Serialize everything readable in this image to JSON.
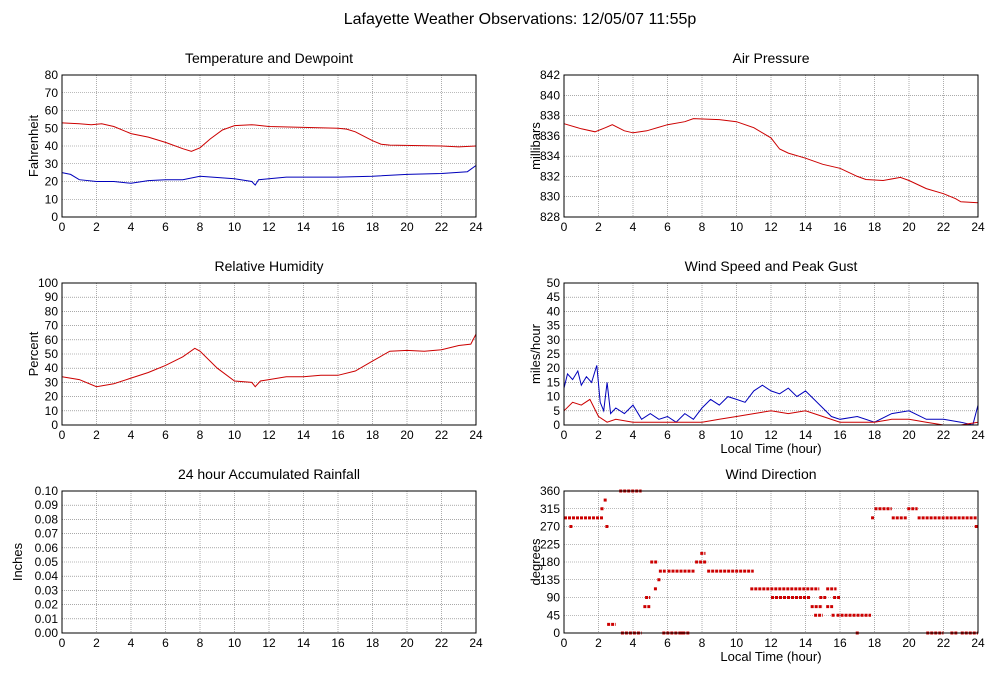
{
  "title": "Lafayette Weather Observations: 12/05/07 11:55p",
  "colors": {
    "red": "#cc0000",
    "blue": "#0000bb",
    "grid": "#777777"
  },
  "chart_data": [
    {
      "id": "temp",
      "type": "line",
      "title": "Temperature and Dewpoint",
      "xlabel": "",
      "ylabel": "Fahrenheit",
      "xlim": [
        0,
        24
      ],
      "ylim": [
        0,
        80
      ],
      "xticks": [
        0,
        2,
        4,
        6,
        8,
        10,
        12,
        14,
        16,
        18,
        20,
        22,
        24
      ],
      "yticks": [
        0,
        10,
        20,
        30,
        40,
        50,
        60,
        70,
        80
      ],
      "grid": true,
      "series": [
        {
          "color": "red",
          "points": [
            [
              0,
              53
            ],
            [
              1,
              52.5
            ],
            [
              1.7,
              52
            ],
            [
              2.3,
              52.5
            ],
            [
              3,
              51
            ],
            [
              4,
              47
            ],
            [
              5,
              45
            ],
            [
              6,
              42
            ],
            [
              7,
              38.5
            ],
            [
              7.5,
              37
            ],
            [
              8,
              39
            ],
            [
              8.6,
              44
            ],
            [
              9.3,
              49
            ],
            [
              10,
              51.5
            ],
            [
              11,
              52
            ],
            [
              12,
              51
            ],
            [
              14,
              50.5
            ],
            [
              16,
              50
            ],
            [
              16.5,
              49.5
            ],
            [
              17,
              48
            ],
            [
              18,
              43
            ],
            [
              18.5,
              41
            ],
            [
              19,
              40.5
            ],
            [
              22,
              40
            ],
            [
              23,
              39.5
            ],
            [
              24,
              40
            ]
          ]
        },
        {
          "color": "blue",
          "points": [
            [
              0,
              25
            ],
            [
              0.5,
              24
            ],
            [
              1,
              21
            ],
            [
              2,
              20
            ],
            [
              3,
              20
            ],
            [
              4,
              19
            ],
            [
              5,
              20.5
            ],
            [
              6,
              21
            ],
            [
              7,
              21
            ],
            [
              8,
              23
            ],
            [
              10,
              21.5
            ],
            [
              11,
              20
            ],
            [
              11.2,
              18
            ],
            [
              11.4,
              21
            ],
            [
              12,
              21.5
            ],
            [
              13,
              22.5
            ],
            [
              14,
              22.5
            ],
            [
              16,
              22.5
            ],
            [
              18,
              23
            ],
            [
              20,
              24
            ],
            [
              22,
              24.5
            ],
            [
              23.5,
              25.5
            ],
            [
              24,
              29
            ]
          ]
        }
      ]
    },
    {
      "id": "pressure",
      "type": "line",
      "title": "Air Pressure",
      "xlabel": "",
      "ylabel": "millibars",
      "xlim": [
        0,
        24
      ],
      "ylim": [
        828,
        842
      ],
      "xticks": [
        0,
        2,
        4,
        6,
        8,
        10,
        12,
        14,
        16,
        18,
        20,
        22,
        24
      ],
      "yticks": [
        828,
        830,
        832,
        834,
        836,
        838,
        840,
        842
      ],
      "grid": true,
      "series": [
        {
          "color": "red",
          "points": [
            [
              0,
              837.2
            ],
            [
              1,
              836.7
            ],
            [
              1.8,
              836.4
            ],
            [
              2.4,
              836.8
            ],
            [
              2.8,
              837.1
            ],
            [
              3.5,
              836.5
            ],
            [
              4,
              836.3
            ],
            [
              4.8,
              836.5
            ],
            [
              6,
              837.1
            ],
            [
              7,
              837.4
            ],
            [
              7.5,
              837.7
            ],
            [
              9,
              837.6
            ],
            [
              10,
              837.4
            ],
            [
              11,
              836.8
            ],
            [
              12,
              835.8
            ],
            [
              12.5,
              834.7
            ],
            [
              13,
              834.3
            ],
            [
              14,
              833.8
            ],
            [
              15,
              833.2
            ],
            [
              16,
              832.8
            ],
            [
              17,
              832
            ],
            [
              17.5,
              831.7
            ],
            [
              18.5,
              831.6
            ],
            [
              19.5,
              831.9
            ],
            [
              20,
              831.6
            ],
            [
              21,
              830.8
            ],
            [
              22,
              830.3
            ],
            [
              22.7,
              829.8
            ],
            [
              23,
              829.5
            ],
            [
              24,
              829.4
            ]
          ]
        }
      ]
    },
    {
      "id": "humidity",
      "type": "line",
      "title": "Relative Humidity",
      "xlabel": "",
      "ylabel": "Percent",
      "xlim": [
        0,
        24
      ],
      "ylim": [
        0,
        100
      ],
      "xticks": [
        0,
        2,
        4,
        6,
        8,
        10,
        12,
        14,
        16,
        18,
        20,
        22,
        24
      ],
      "yticks": [
        0,
        10,
        20,
        30,
        40,
        50,
        60,
        70,
        80,
        90,
        100
      ],
      "grid": true,
      "series": [
        {
          "color": "red",
          "points": [
            [
              0,
              34
            ],
            [
              1,
              32
            ],
            [
              2,
              27
            ],
            [
              3,
              29
            ],
            [
              4,
              33
            ],
            [
              5,
              37
            ],
            [
              6,
              42
            ],
            [
              7,
              48
            ],
            [
              7.7,
              54
            ],
            [
              8,
              52
            ],
            [
              9,
              40
            ],
            [
              10,
              31
            ],
            [
              11,
              30
            ],
            [
              11.2,
              27
            ],
            [
              11.5,
              31
            ],
            [
              12,
              32
            ],
            [
              13,
              34
            ],
            [
              14,
              34
            ],
            [
              15,
              35
            ],
            [
              16,
              35
            ],
            [
              17,
              38
            ],
            [
              18,
              45
            ],
            [
              19,
              52
            ],
            [
              20,
              52.5
            ],
            [
              21,
              52
            ],
            [
              22,
              53
            ],
            [
              23,
              56
            ],
            [
              23.7,
              57
            ],
            [
              24,
              64
            ]
          ]
        }
      ]
    },
    {
      "id": "wind",
      "type": "line",
      "title": "Wind Speed and Peak Gust",
      "xlabel": "Local Time (hour)",
      "ylabel": "miles/hour",
      "xlim": [
        0,
        24
      ],
      "ylim": [
        0,
        50
      ],
      "xticks": [
        0,
        2,
        4,
        6,
        8,
        10,
        12,
        14,
        16,
        18,
        20,
        22,
        24
      ],
      "yticks": [
        0,
        5,
        10,
        15,
        20,
        25,
        30,
        35,
        40,
        45,
        50
      ],
      "grid": true,
      "series": [
        {
          "color": "blue",
          "points": [
            [
              0,
              13
            ],
            [
              0.2,
              18
            ],
            [
              0.5,
              16
            ],
            [
              0.8,
              19
            ],
            [
              1,
              14
            ],
            [
              1.3,
              17
            ],
            [
              1.6,
              15
            ],
            [
              1.9,
              21
            ],
            [
              2.1,
              8
            ],
            [
              2.3,
              5
            ],
            [
              2.5,
              15
            ],
            [
              2.7,
              4
            ],
            [
              3,
              6
            ],
            [
              3.5,
              4
            ],
            [
              4,
              7
            ],
            [
              4.5,
              2
            ],
            [
              5,
              4
            ],
            [
              5.5,
              2
            ],
            [
              6,
              3
            ],
            [
              6.5,
              1
            ],
            [
              7,
              4
            ],
            [
              7.5,
              2
            ],
            [
              8,
              6
            ],
            [
              8.5,
              9
            ],
            [
              9,
              7
            ],
            [
              9.5,
              10
            ],
            [
              10,
              9
            ],
            [
              10.5,
              8
            ],
            [
              11,
              12
            ],
            [
              11.5,
              14
            ],
            [
              12,
              12
            ],
            [
              12.5,
              11
            ],
            [
              13,
              13
            ],
            [
              13.5,
              10
            ],
            [
              14,
              12
            ],
            [
              14.5,
              9
            ],
            [
              15,
              6
            ],
            [
              15.5,
              3
            ],
            [
              16,
              2
            ],
            [
              17,
              3
            ],
            [
              18,
              1
            ],
            [
              19,
              4
            ],
            [
              20,
              5
            ],
            [
              21,
              2
            ],
            [
              22,
              2
            ],
            [
              23,
              1
            ],
            [
              23.7,
              0
            ],
            [
              24,
              7
            ]
          ]
        },
        {
          "color": "red",
          "points": [
            [
              0,
              5
            ],
            [
              0.5,
              8
            ],
            [
              1,
              7
            ],
            [
              1.5,
              9
            ],
            [
              2,
              3
            ],
            [
              2.5,
              1
            ],
            [
              3,
              2
            ],
            [
              4,
              1
            ],
            [
              5,
              1
            ],
            [
              6,
              1
            ],
            [
              7,
              1
            ],
            [
              8,
              1
            ],
            [
              9,
              2
            ],
            [
              10,
              3
            ],
            [
              11,
              4
            ],
            [
              12,
              5
            ],
            [
              13,
              4
            ],
            [
              14,
              5
            ],
            [
              15,
              3
            ],
            [
              16,
              1
            ],
            [
              17,
              1
            ],
            [
              18,
              1
            ],
            [
              19,
              2
            ],
            [
              20,
              2
            ],
            [
              21,
              1
            ],
            [
              22,
              0
            ],
            [
              23,
              0
            ],
            [
              24,
              1
            ]
          ]
        }
      ]
    },
    {
      "id": "rain",
      "type": "line",
      "title": "24 hour Accumulated Rainfall",
      "xlabel": "",
      "ylabel": "Inches",
      "xlim": [
        0,
        24
      ],
      "ylim": [
        0,
        0.1
      ],
      "xticks": [
        0,
        2,
        4,
        6,
        8,
        10,
        12,
        14,
        16,
        18,
        20,
        22,
        24
      ],
      "yticks": [
        "0.00",
        "0.01",
        "0.02",
        "0.03",
        "0.04",
        "0.05",
        "0.06",
        "0.07",
        "0.08",
        "0.09",
        "0.10"
      ],
      "grid": true,
      "series": [
        {
          "color": "red",
          "points": [
            [
              0,
              0
            ],
            [
              24,
              0
            ]
          ]
        }
      ]
    },
    {
      "id": "direction",
      "type": "scatter",
      "title": "Wind Direction",
      "xlabel": "Local Time (hour)",
      "ylabel": "degrees",
      "xlim": [
        0,
        24
      ],
      "ylim": [
        0,
        360
      ],
      "xticks": [
        0,
        2,
        4,
        6,
        8,
        10,
        12,
        14,
        16,
        18,
        20,
        22,
        24
      ],
      "yticks": [
        0,
        45,
        90,
        135,
        180,
        225,
        270,
        315,
        360
      ],
      "grid": true,
      "segments": [
        [
          0,
          2.3,
          292
        ],
        [
          2.4,
          2.6,
          270
        ],
        [
          2.3,
          2.5,
          337
        ],
        [
          2.5,
          3.0,
          22
        ],
        [
          3.2,
          4.5,
          360
        ],
        [
          3.3,
          4.5,
          0
        ],
        [
          4.6,
          5.0,
          67
        ],
        [
          4.7,
          5.0,
          90
        ],
        [
          5.0,
          5.4,
          180
        ],
        [
          5.5,
          5.9,
          157
        ],
        [
          6.0,
          7.6,
          157
        ],
        [
          5.7,
          7.3,
          0
        ],
        [
          7.6,
          8.3,
          180
        ],
        [
          7.9,
          8.2,
          202
        ],
        [
          8.3,
          11.0,
          157
        ],
        [
          10.8,
          14.8,
          112
        ],
        [
          12.0,
          14.3,
          90
        ],
        [
          14.3,
          15.0,
          67
        ],
        [
          14.5,
          15.0,
          45
        ],
        [
          14.8,
          15.2,
          90
        ],
        [
          15.2,
          15.8,
          112
        ],
        [
          15.2,
          15.6,
          67
        ],
        [
          15.6,
          16.0,
          90
        ],
        [
          15.8,
          17.8,
          45
        ],
        [
          17.8,
          18.0,
          292
        ],
        [
          18.0,
          19.0,
          315
        ],
        [
          19.0,
          19.9,
          292
        ],
        [
          19.9,
          20.5,
          315
        ],
        [
          20.5,
          24.0,
          292
        ],
        [
          21.0,
          22.0,
          0
        ],
        [
          22.4,
          22.8,
          0
        ],
        [
          23.0,
          24.0,
          0
        ]
      ],
      "points": [
        [
          0.4,
          270
        ],
        [
          2.2,
          315
        ],
        [
          5.3,
          112
        ],
        [
          5.5,
          135
        ],
        [
          6.8,
          0
        ],
        [
          15.6,
          45
        ],
        [
          17.0,
          0
        ],
        [
          23.9,
          270
        ]
      ]
    }
  ]
}
